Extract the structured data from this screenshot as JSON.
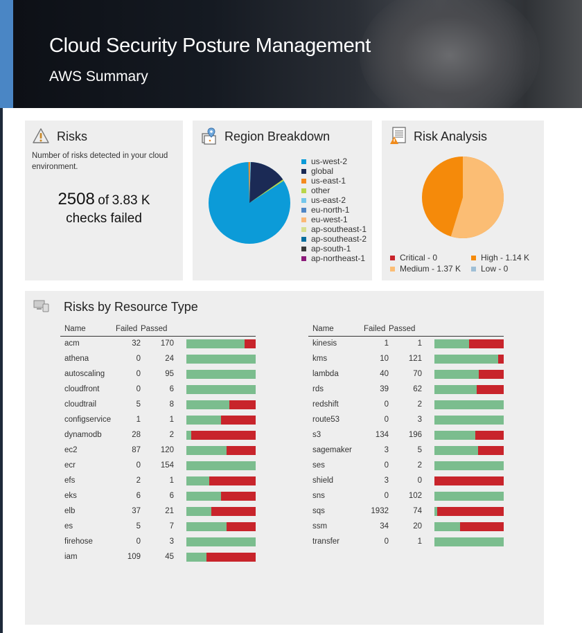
{
  "header": {
    "title": "Cloud Security Posture Management",
    "subtitle": "AWS Summary"
  },
  "risks_card": {
    "title": "Risks",
    "icon": "warning-icon",
    "description": "Number of risks detected in your cloud environment.",
    "failed": "2508",
    "of_label": "of",
    "total": "3.83 K",
    "footer": "checks failed"
  },
  "region_card": {
    "title": "Region Breakdown",
    "icon": "map-pin-icon",
    "legend": [
      {
        "label": "us-west-2",
        "color": "#0c9bd8"
      },
      {
        "label": "global",
        "color": "#1b2a55"
      },
      {
        "label": "us-east-1",
        "color": "#f58a1f"
      },
      {
        "label": "other",
        "color": "#b9d54a"
      },
      {
        "label": "us-east-2",
        "color": "#74c7ec"
      },
      {
        "label": "eu-north-1",
        "color": "#4f86c6"
      },
      {
        "label": "eu-west-1",
        "color": "#fbb877"
      },
      {
        "label": "ap-southeast-1",
        "color": "#d7df8f"
      },
      {
        "label": "ap-southeast-2",
        "color": "#0a6e9e"
      },
      {
        "label": "ap-south-1",
        "color": "#3a3a3a"
      },
      {
        "label": "ap-northeast-1",
        "color": "#8b1a7a"
      }
    ]
  },
  "risk_analysis_card": {
    "title": "Risk Analysis",
    "icon": "report-warning-icon",
    "legend": [
      {
        "label": "Critical - 0",
        "color": "#c8242b"
      },
      {
        "label": "High - 1.14 K",
        "color": "#f58a0a"
      },
      {
        "label": "Medium - 1.37 K",
        "color": "#fbbd74"
      },
      {
        "label": "Low - 0",
        "color": "#9fbfd6"
      }
    ]
  },
  "resource_card": {
    "title": "Risks by Resource Type",
    "icon": "devices-icon",
    "columns": {
      "name": "Name",
      "failed": "Failed",
      "passed": "Passed"
    },
    "left": [
      {
        "name": "acm",
        "failed": "32",
        "passed": "170"
      },
      {
        "name": "athena",
        "failed": "0",
        "passed": "24"
      },
      {
        "name": "autoscaling",
        "failed": "0",
        "passed": "95"
      },
      {
        "name": "cloudfront",
        "failed": "0",
        "passed": "6"
      },
      {
        "name": "cloudtrail",
        "failed": "5",
        "passed": "8"
      },
      {
        "name": "configservice",
        "failed": "1",
        "passed": "1"
      },
      {
        "name": "dynamodb",
        "failed": "28",
        "passed": "2"
      },
      {
        "name": "ec2",
        "failed": "87",
        "passed": "120"
      },
      {
        "name": "ecr",
        "failed": "0",
        "passed": "154"
      },
      {
        "name": "efs",
        "failed": "2",
        "passed": "1"
      },
      {
        "name": "eks",
        "failed": "6",
        "passed": "6"
      },
      {
        "name": "elb",
        "failed": "37",
        "passed": "21"
      },
      {
        "name": "es",
        "failed": "5",
        "passed": "7"
      },
      {
        "name": "firehose",
        "failed": "0",
        "passed": "3"
      },
      {
        "name": "iam",
        "failed": "109",
        "passed": "45"
      }
    ],
    "right": [
      {
        "name": "kinesis",
        "failed": "1",
        "passed": "1"
      },
      {
        "name": "kms",
        "failed": "10",
        "passed": "121"
      },
      {
        "name": "lambda",
        "failed": "40",
        "passed": "70"
      },
      {
        "name": "rds",
        "failed": "39",
        "passed": "62"
      },
      {
        "name": "redshift",
        "failed": "0",
        "passed": "2"
      },
      {
        "name": "route53",
        "failed": "0",
        "passed": "3"
      },
      {
        "name": "s3",
        "failed": "134",
        "passed": "196"
      },
      {
        "name": "sagemaker",
        "failed": "3",
        "passed": "5"
      },
      {
        "name": "ses",
        "failed": "0",
        "passed": "2"
      },
      {
        "name": "shield",
        "failed": "3",
        "passed": "0"
      },
      {
        "name": "sns",
        "failed": "0",
        "passed": "102"
      },
      {
        "name": "sqs",
        "failed": "1932",
        "passed": "74"
      },
      {
        "name": "ssm",
        "failed": "34",
        "passed": "20"
      },
      {
        "name": "transfer",
        "failed": "0",
        "passed": "1"
      }
    ]
  },
  "colors": {
    "passed": "#7bbd8e",
    "failed": "#c8242b",
    "card_bg": "#eeeeee",
    "accent": "#4a86c5"
  }
}
